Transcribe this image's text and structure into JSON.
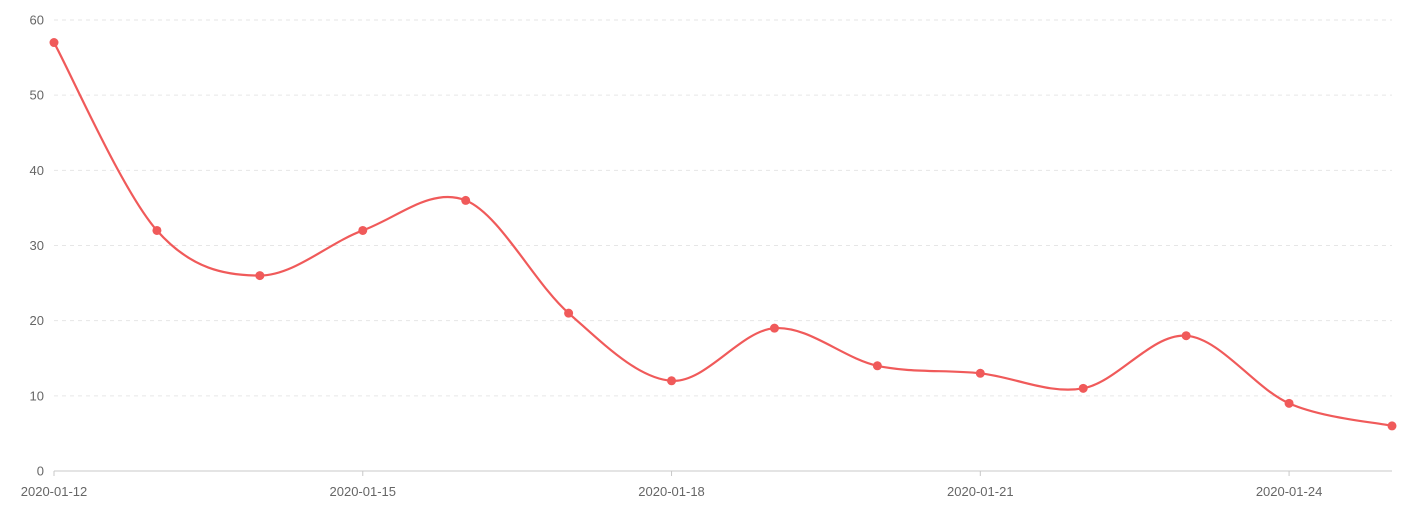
{
  "chart_data": {
    "type": "line",
    "x": [
      "2020-01-12",
      "2020-01-13",
      "2020-01-14",
      "2020-01-15",
      "2020-01-16",
      "2020-01-17",
      "2020-01-18",
      "2020-01-19",
      "2020-01-20",
      "2020-01-21",
      "2020-01-22",
      "2020-01-23",
      "2020-01-24",
      "2020-01-25"
    ],
    "x_tick_labels": [
      "2020-01-12",
      "2020-01-15",
      "2020-01-18",
      "2020-01-21",
      "2020-01-24"
    ],
    "series": [
      {
        "values": [
          57,
          32,
          26,
          32,
          36,
          21,
          12,
          19,
          14,
          13,
          11,
          18,
          9,
          6
        ],
        "color": "#f05a5a"
      }
    ],
    "ylim": [
      0,
      60
    ],
    "y_ticks": [
      0,
      10,
      20,
      30,
      40,
      50,
      60
    ],
    "smooth": true,
    "grid": true,
    "title": "",
    "xlabel": "",
    "ylabel": ""
  }
}
